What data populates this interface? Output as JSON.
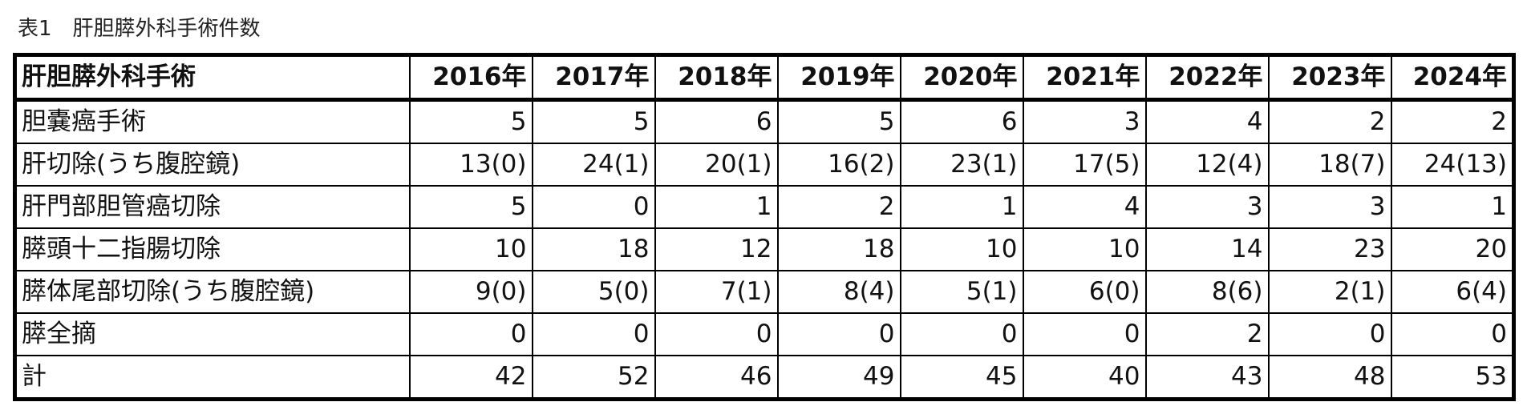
{
  "caption": "表1　肝胆膵外科手術件数",
  "table": {
    "header_label": "肝胆膵外科手術",
    "years": [
      "2016年",
      "2017年",
      "2018年",
      "2019年",
      "2020年",
      "2021年",
      "2022年",
      "2023年",
      "2024年"
    ],
    "rows": [
      {
        "label": "胆嚢癌手術",
        "values": [
          "5",
          "5",
          "6",
          "5",
          "6",
          "3",
          "4",
          "2",
          "2"
        ]
      },
      {
        "label": "肝切除(うち腹腔鏡)",
        "values": [
          "13(0)",
          "24(1)",
          "20(1)",
          "16(2)",
          "23(1)",
          "17(5)",
          "12(4)",
          "18(7)",
          "24(13)"
        ]
      },
      {
        "label": "肝門部胆管癌切除",
        "values": [
          "5",
          "0",
          "1",
          "2",
          "1",
          "4",
          "3",
          "3",
          "1"
        ]
      },
      {
        "label": "膵頭十二指腸切除",
        "values": [
          "10",
          "18",
          "12",
          "18",
          "10",
          "10",
          "14",
          "23",
          "20"
        ]
      },
      {
        "label": "膵体尾部切除(うち腹腔鏡)",
        "values": [
          "9(0)",
          "5(0)",
          "7(1)",
          "8(4)",
          "5(1)",
          "6(0)",
          "8(6)",
          "2(1)",
          "6(4)"
        ]
      },
      {
        "label": "膵全摘",
        "values": [
          "0",
          "0",
          "0",
          "0",
          "0",
          "0",
          "2",
          "0",
          "0"
        ]
      },
      {
        "label": "計",
        "values": [
          "42",
          "52",
          "46",
          "49",
          "45",
          "40",
          "43",
          "48",
          "53"
        ]
      }
    ]
  }
}
